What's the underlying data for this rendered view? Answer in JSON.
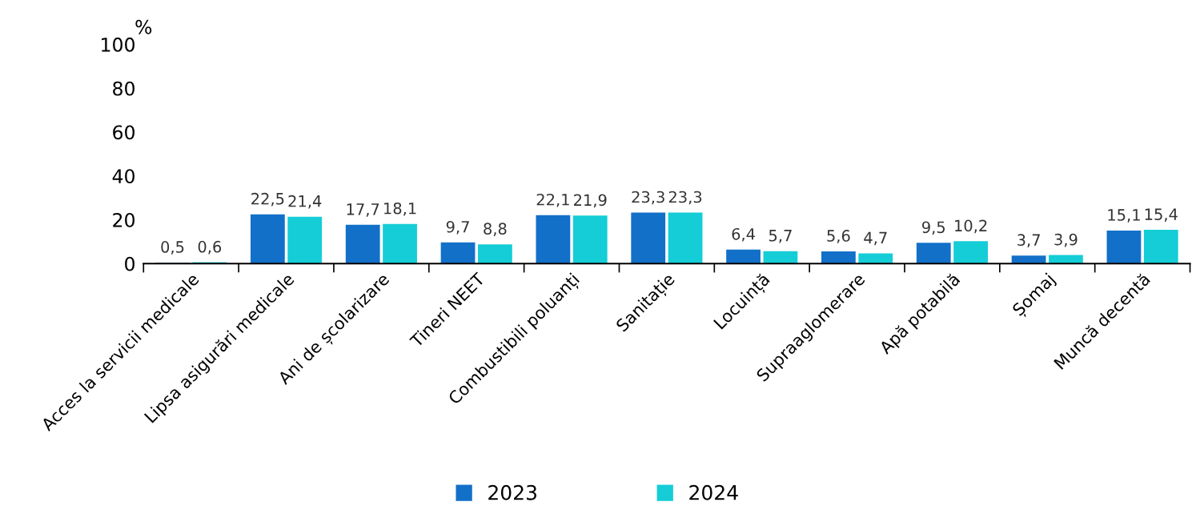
{
  "chart_data": {
    "type": "bar",
    "ylabel": "%",
    "categories": [
      "Acces la servicii medicale",
      "Lipsa asigurări medicale",
      "Ani de școlarizare",
      "Tineri NEET",
      "Combustibili poluanți",
      "Sanitație",
      "Locuință",
      "Supraaglomerare",
      "Apă potabilă",
      "Șomaj",
      "Muncă decentă"
    ],
    "series": [
      {
        "name": "2023",
        "color": "#1270c8",
        "values": [
          0.5,
          22.5,
          17.7,
          9.7,
          22.1,
          23.3,
          6.4,
          5.6,
          9.5,
          3.7,
          15.1
        ],
        "value_labels": [
          "0,5",
          "22,5",
          "17,7",
          "9,7",
          "22,1",
          "23,3",
          "6,4",
          "5,6",
          "9,5",
          "3,7",
          "15,1"
        ]
      },
      {
        "name": "2024",
        "color": "#14cdd6",
        "values": [
          0.6,
          21.4,
          18.1,
          8.8,
          21.9,
          23.3,
          5.7,
          4.7,
          10.2,
          3.9,
          15.4
        ],
        "value_labels": [
          "0,6",
          "21,4",
          "18,1",
          "8,8",
          "21,9",
          "23,3",
          "5,7",
          "4,7",
          "10,2",
          "3,9",
          "15,4"
        ]
      }
    ],
    "ylim": [
      0,
      100
    ],
    "yticks": [
      0,
      20,
      40,
      60,
      80,
      100
    ],
    "grid": false,
    "legend": "bottom"
  }
}
